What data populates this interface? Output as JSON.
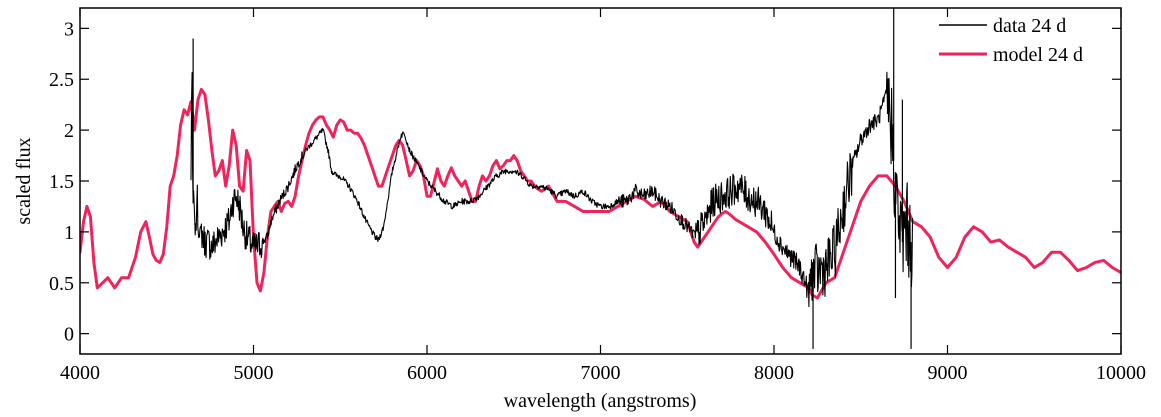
{
  "chart_data": {
    "type": "line",
    "title": "",
    "xlabel": "wavelength (angstroms)",
    "ylabel": "scaled flux",
    "xlim": [
      4000,
      10000
    ],
    "ylim": [
      -0.2,
      3.2
    ],
    "xticks": [
      4000,
      5000,
      6000,
      7000,
      8000,
      9000,
      10000
    ],
    "yticks": [
      0,
      0.5,
      1,
      1.5,
      2,
      2.5,
      3
    ],
    "grid": false,
    "legend": {
      "position": "top-right"
    },
    "series": [
      {
        "name": "data 24 d",
        "color": "#000000",
        "noisy": true,
        "x": [
          4640,
          4645,
          4650,
          4655,
          4660,
          4665,
          4670,
          4675,
          4680,
          4700,
          4720,
          4740,
          4760,
          4780,
          4800,
          4820,
          4840,
          4860,
          4880,
          4900,
          4920,
          4940,
          4960,
          4980,
          5000,
          5020,
          5050,
          5080,
          5100,
          5150,
          5200,
          5250,
          5300,
          5350,
          5400,
          5430,
          5450,
          5480,
          5500,
          5550,
          5600,
          5650,
          5700,
          5720,
          5750,
          5800,
          5850,
          5870,
          5900,
          5950,
          6000,
          6050,
          6100,
          6150,
          6200,
          6250,
          6300,
          6350,
          6400,
          6450,
          6500,
          6550,
          6600,
          6650,
          6700,
          6750,
          6800,
          6850,
          6900,
          6950,
          7000,
          7050,
          7100,
          7150,
          7200,
          7250,
          7300,
          7350,
          7400,
          7450,
          7500,
          7550,
          7600,
          7650,
          7700,
          7750,
          7800,
          7850,
          7900,
          7950,
          8000,
          8050,
          8100,
          8150,
          8200,
          8220,
          8250,
          8300,
          8350,
          8400,
          8450,
          8500,
          8550,
          8600,
          8650,
          8680,
          8700,
          8720,
          8740,
          8760,
          8780,
          8800
        ],
        "y": [
          1.5,
          2.9,
          1.2,
          1.4,
          1.1,
          1.0,
          1.05,
          1.5,
          1.0,
          1.0,
          0.9,
          0.9,
          0.85,
          0.9,
          0.95,
          1.0,
          1.05,
          1.1,
          1.3,
          1.35,
          1.25,
          1.05,
          0.95,
          0.9,
          0.85,
          0.85,
          0.9,
          0.95,
          1.1,
          1.3,
          1.45,
          1.65,
          1.8,
          1.9,
          2.0,
          1.8,
          1.6,
          1.55,
          1.55,
          1.45,
          1.3,
          1.1,
          0.95,
          0.92,
          1.05,
          1.6,
          1.95,
          1.97,
          1.8,
          1.65,
          1.5,
          1.4,
          1.3,
          1.25,
          1.3,
          1.3,
          1.35,
          1.45,
          1.55,
          1.6,
          1.6,
          1.55,
          1.45,
          1.45,
          1.42,
          1.35,
          1.4,
          1.35,
          1.4,
          1.3,
          1.25,
          1.25,
          1.3,
          1.3,
          1.4,
          1.35,
          1.4,
          1.3,
          1.25,
          1.15,
          1.05,
          0.95,
          1.1,
          1.3,
          1.35,
          1.4,
          1.45,
          1.35,
          1.3,
          1.2,
          1.0,
          0.85,
          0.75,
          0.65,
          0.4,
          0.6,
          0.6,
          0.65,
          0.8,
          1.25,
          1.65,
          1.9,
          2.05,
          2.1,
          2.35,
          2.0,
          1.4,
          1.1,
          0.9,
          1.1,
          0.95,
          0.85
        ]
      },
      {
        "name": "model 24 d",
        "color": "#f0245a",
        "noisy": false,
        "x": [
          4000,
          4020,
          4040,
          4060,
          4080,
          4100,
          4130,
          4160,
          4200,
          4240,
          4280,
          4320,
          4350,
          4380,
          4400,
          4420,
          4440,
          4460,
          4480,
          4500,
          4520,
          4540,
          4560,
          4580,
          4600,
          4620,
          4640,
          4660,
          4680,
          4700,
          4720,
          4740,
          4760,
          4780,
          4800,
          4820,
          4840,
          4860,
          4880,
          4900,
          4920,
          4940,
          4960,
          4980,
          5000,
          5020,
          5040,
          5060,
          5080,
          5100,
          5120,
          5140,
          5160,
          5180,
          5200,
          5220,
          5240,
          5260,
          5280,
          5300,
          5320,
          5340,
          5360,
          5380,
          5400,
          5420,
          5440,
          5460,
          5480,
          5500,
          5520,
          5540,
          5560,
          5580,
          5600,
          5620,
          5640,
          5660,
          5680,
          5700,
          5720,
          5740,
          5760,
          5780,
          5800,
          5820,
          5840,
          5860,
          5880,
          5900,
          5920,
          5940,
          5960,
          5980,
          6000,
          6020,
          6040,
          6060,
          6080,
          6100,
          6120,
          6140,
          6160,
          6180,
          6200,
          6220,
          6240,
          6260,
          6280,
          6300,
          6320,
          6340,
          6360,
          6380,
          6400,
          6420,
          6440,
          6460,
          6480,
          6500,
          6520,
          6540,
          6560,
          6580,
          6600,
          6620,
          6640,
          6660,
          6680,
          6700,
          6750,
          6800,
          6850,
          6900,
          6950,
          7000,
          7050,
          7100,
          7150,
          7200,
          7250,
          7300,
          7350,
          7400,
          7450,
          7500,
          7520,
          7540,
          7560,
          7580,
          7600,
          7620,
          7640,
          7660,
          7680,
          7700,
          7720,
          7740,
          7760,
          7780,
          7800,
          7850,
          7900,
          7950,
          8000,
          8050,
          8100,
          8150,
          8200,
          8220,
          8250,
          8300,
          8350,
          8400,
          8450,
          8500,
          8550,
          8600,
          8650,
          8700,
          8750,
          8800,
          8850,
          8900,
          8950,
          9000,
          9050,
          9100,
          9150,
          9200,
          9250,
          9300,
          9350,
          9400,
          9450,
          9500,
          9550,
          9600,
          9650,
          9700,
          9750,
          9800,
          9850,
          9900,
          9950,
          10000
        ],
        "y": [
          0.8,
          1.1,
          1.25,
          1.15,
          0.7,
          0.45,
          0.5,
          0.55,
          0.45,
          0.55,
          0.55,
          0.75,
          1.0,
          1.1,
          0.95,
          0.78,
          0.72,
          0.7,
          0.78,
          1.05,
          1.45,
          1.55,
          1.75,
          2.05,
          2.2,
          2.15,
          2.28,
          2.0,
          2.3,
          2.4,
          2.35,
          2.1,
          1.8,
          1.55,
          1.6,
          1.7,
          1.45,
          1.65,
          2.0,
          1.85,
          1.45,
          1.4,
          1.8,
          1.7,
          0.95,
          0.5,
          0.42,
          0.6,
          0.95,
          1.2,
          1.25,
          1.3,
          1.2,
          1.28,
          1.3,
          1.25,
          1.35,
          1.55,
          1.7,
          1.85,
          1.97,
          2.05,
          2.1,
          2.13,
          2.13,
          2.05,
          2.0,
          1.93,
          2.05,
          2.1,
          2.08,
          2.0,
          2.0,
          1.97,
          1.97,
          1.92,
          1.85,
          1.75,
          1.65,
          1.55,
          1.45,
          1.45,
          1.55,
          1.65,
          1.75,
          1.85,
          1.9,
          1.85,
          1.7,
          1.55,
          1.6,
          1.7,
          1.65,
          1.55,
          1.35,
          1.35,
          1.48,
          1.62,
          1.5,
          1.45,
          1.55,
          1.63,
          1.55,
          1.5,
          1.45,
          1.5,
          1.4,
          1.3,
          1.3,
          1.45,
          1.55,
          1.5,
          1.55,
          1.65,
          1.7,
          1.62,
          1.65,
          1.7,
          1.7,
          1.75,
          1.7,
          1.6,
          1.55,
          1.5,
          1.5,
          1.45,
          1.42,
          1.4,
          1.42,
          1.45,
          1.3,
          1.3,
          1.25,
          1.2,
          1.2,
          1.2,
          1.2,
          1.25,
          1.3,
          1.35,
          1.32,
          1.25,
          1.3,
          1.2,
          1.15,
          1.1,
          1.0,
          0.9,
          0.85,
          0.9,
          0.95,
          1.0,
          1.05,
          1.1,
          1.15,
          1.18,
          1.2,
          1.18,
          1.15,
          1.12,
          1.1,
          1.05,
          1.0,
          0.9,
          0.78,
          0.65,
          0.55,
          0.5,
          0.45,
          0.38,
          0.35,
          0.5,
          0.55,
          0.8,
          1.05,
          1.3,
          1.45,
          1.55,
          1.55,
          1.45,
          1.3,
          1.1,
          1.05,
          0.95,
          0.75,
          0.65,
          0.75,
          0.95,
          1.05,
          1.0,
          0.9,
          0.92,
          0.85,
          0.8,
          0.75,
          0.65,
          0.7,
          0.8,
          0.8,
          0.72,
          0.62,
          0.65,
          0.7,
          0.72,
          0.65,
          0.6
        ]
      }
    ]
  }
}
